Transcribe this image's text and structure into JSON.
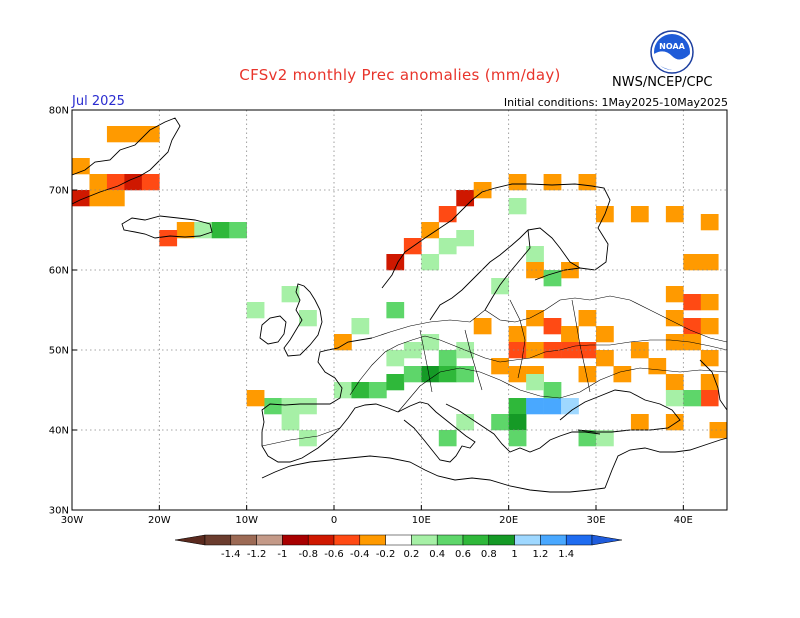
{
  "header": {
    "title": "CFSv2 monthly Prec anomalies (mm/day)",
    "month": "Jul 2025",
    "initial_conditions": "Initial conditions: 1May2025-10May2025",
    "agency": "NWS/NCEP/CPC",
    "logo_text": "NOAA"
  },
  "map": {
    "lon_range": [
      -30,
      45
    ],
    "lat_range": [
      30,
      80
    ],
    "lat_labels": [
      "30N",
      "40N",
      "50N",
      "60N",
      "70N",
      "80N"
    ],
    "lon_labels": [
      "30W",
      "20W",
      "10W",
      "0",
      "10E",
      "20E",
      "30E",
      "40E"
    ]
  },
  "colorbar": {
    "labels": [
      "-1.4",
      "-1.2",
      "-1",
      "-0.8",
      "-0.6",
      "-0.4",
      "-0.2",
      "0.2",
      "0.4",
      "0.6",
      "0.8",
      "1",
      "1.2",
      "1.4"
    ],
    "colors": [
      "#6b3d2e",
      "#9c6a55",
      "#c49a88",
      "#a80000",
      "#cf1800",
      "#ff4a14",
      "#ff9a00",
      "#ffffff",
      "#a6f0a6",
      "#5ed66a",
      "#2fb83a",
      "#159a26",
      "#9fd8ff",
      "#49a8ff",
      "#1f6cf0"
    ],
    "low_color": "#5a2a1e",
    "high_color": "#1f5cdc"
  },
  "anomalies": {
    "legend": "colors",
    "cells": [
      {
        "lon": -25,
        "lat": 77,
        "c": "#ff9a00"
      },
      {
        "lon": -23,
        "lat": 77,
        "c": "#ff9a00"
      },
      {
        "lon": -21,
        "lat": 77,
        "c": "#ff9a00"
      },
      {
        "lon": -27,
        "lat": 71,
        "c": "#ff9a00"
      },
      {
        "lon": -25,
        "lat": 71,
        "c": "#ff4a14"
      },
      {
        "lon": -23,
        "lat": 71,
        "c": "#cf1800"
      },
      {
        "lon": -21,
        "lat": 71,
        "c": "#ff4a14"
      },
      {
        "lon": -29,
        "lat": 69,
        "c": "#cf1800"
      },
      {
        "lon": -27,
        "lat": 69,
        "c": "#ff9a00"
      },
      {
        "lon": -25,
        "lat": 69,
        "c": "#ff9a00"
      },
      {
        "lon": -29,
        "lat": 73,
        "c": "#ff9a00"
      },
      {
        "lon": -17,
        "lat": 65,
        "c": "#ff9a00"
      },
      {
        "lon": -19,
        "lat": 64,
        "c": "#ff4a14"
      },
      {
        "lon": -15,
        "lat": 65,
        "c": "#a6f0a6"
      },
      {
        "lon": -13,
        "lat": 65,
        "c": "#2fb83a"
      },
      {
        "lon": -11,
        "lat": 65,
        "c": "#5ed66a"
      },
      {
        "lon": 7,
        "lat": 61,
        "c": "#cf1800"
      },
      {
        "lon": 9,
        "lat": 63,
        "c": "#ff4a14"
      },
      {
        "lon": 11,
        "lat": 65,
        "c": "#ff9a00"
      },
      {
        "lon": 13,
        "lat": 67,
        "c": "#ff4a14"
      },
      {
        "lon": 15,
        "lat": 69,
        "c": "#cf1800"
      },
      {
        "lon": 17,
        "lat": 70,
        "c": "#ff9a00"
      },
      {
        "lon": 21,
        "lat": 71,
        "c": "#ff9a00"
      },
      {
        "lon": 25,
        "lat": 71,
        "c": "#ff9a00"
      },
      {
        "lon": 29,
        "lat": 71,
        "c": "#ff9a00"
      },
      {
        "lon": 11,
        "lat": 61,
        "c": "#a6f0a6"
      },
      {
        "lon": 13,
        "lat": 63,
        "c": "#a6f0a6"
      },
      {
        "lon": 15,
        "lat": 64,
        "c": "#a6f0a6"
      },
      {
        "lon": 21,
        "lat": 68,
        "c": "#a6f0a6"
      },
      {
        "lon": 23,
        "lat": 62,
        "c": "#a6f0a6"
      },
      {
        "lon": 31,
        "lat": 67,
        "c": "#ff9a00"
      },
      {
        "lon": 35,
        "lat": 67,
        "c": "#ff9a00"
      },
      {
        "lon": 39,
        "lat": 67,
        "c": "#ff9a00"
      },
      {
        "lon": 43,
        "lat": 66,
        "c": "#ff9a00"
      },
      {
        "lon": 41,
        "lat": 61,
        "c": "#ff9a00"
      },
      {
        "lon": 43,
        "lat": 61,
        "c": "#ff9a00"
      },
      {
        "lon": 23,
        "lat": 60,
        "c": "#ff9a00"
      },
      {
        "lon": 27,
        "lat": 60,
        "c": "#ff9a00"
      },
      {
        "lon": 25,
        "lat": 59,
        "c": "#5ed66a"
      },
      {
        "lon": 39,
        "lat": 57,
        "c": "#ff9a00"
      },
      {
        "lon": 41,
        "lat": 56,
        "c": "#ff4a14"
      },
      {
        "lon": 43,
        "lat": 56,
        "c": "#ff9a00"
      },
      {
        "lon": 39,
        "lat": 54,
        "c": "#ff9a00"
      },
      {
        "lon": 41,
        "lat": 53,
        "c": "#ff4a14"
      },
      {
        "lon": 43,
        "lat": 53,
        "c": "#ff9a00"
      },
      {
        "lon": 39,
        "lat": 51,
        "c": "#ff9a00"
      },
      {
        "lon": 41,
        "lat": 51,
        "c": "#ff9a00"
      },
      {
        "lon": 43,
        "lat": 49,
        "c": "#ff9a00"
      },
      {
        "lon": 37,
        "lat": 48,
        "c": "#ff9a00"
      },
      {
        "lon": 35,
        "lat": 50,
        "c": "#ff9a00"
      },
      {
        "lon": 23,
        "lat": 54,
        "c": "#ff9a00"
      },
      {
        "lon": 25,
        "lat": 53,
        "c": "#ff4a14"
      },
      {
        "lon": 27,
        "lat": 52,
        "c": "#ff9a00"
      },
      {
        "lon": 29,
        "lat": 54,
        "c": "#ff9a00"
      },
      {
        "lon": 31,
        "lat": 52,
        "c": "#ff9a00"
      },
      {
        "lon": 21,
        "lat": 52,
        "c": "#ff9a00"
      },
      {
        "lon": 21,
        "lat": 50,
        "c": "#ff4a14"
      },
      {
        "lon": 23,
        "lat": 50,
        "c": "#ff9a00"
      },
      {
        "lon": 25,
        "lat": 50,
        "c": "#ff4a14"
      },
      {
        "lon": 27,
        "lat": 50,
        "c": "#ff4a14"
      },
      {
        "lon": 29,
        "lat": 50,
        "c": "#ff4a14"
      },
      {
        "lon": 31,
        "lat": 49,
        "c": "#ff9a00"
      },
      {
        "lon": 19,
        "lat": 48,
        "c": "#ff9a00"
      },
      {
        "lon": 21,
        "lat": 47,
        "c": "#ff9a00"
      },
      {
        "lon": 23,
        "lat": 47,
        "c": "#ff9a00"
      },
      {
        "lon": 29,
        "lat": 47,
        "c": "#ff9a00"
      },
      {
        "lon": 33,
        "lat": 47,
        "c": "#ff9a00"
      },
      {
        "lon": 39,
        "lat": 46,
        "c": "#ff9a00"
      },
      {
        "lon": 43,
        "lat": 46,
        "c": "#ff9a00"
      },
      {
        "lon": 43,
        "lat": 44,
        "c": "#ff4a14"
      },
      {
        "lon": 44,
        "lat": 40,
        "c": "#ff9a00"
      },
      {
        "lon": 35,
        "lat": 41,
        "c": "#ff9a00"
      },
      {
        "lon": 39,
        "lat": 41,
        "c": "#ff9a00"
      },
      {
        "lon": 9,
        "lat": 50,
        "c": "#a6f0a6"
      },
      {
        "lon": 11,
        "lat": 51,
        "c": "#a6f0a6"
      },
      {
        "lon": 13,
        "lat": 49,
        "c": "#5ed66a"
      },
      {
        "lon": 15,
        "lat": 50,
        "c": "#a6f0a6"
      },
      {
        "lon": 7,
        "lat": 49,
        "c": "#a6f0a6"
      },
      {
        "lon": 1,
        "lat": 45,
        "c": "#a6f0a6"
      },
      {
        "lon": 3,
        "lat": 45,
        "c": "#2fb83a"
      },
      {
        "lon": 5,
        "lat": 45,
        "c": "#5ed66a"
      },
      {
        "lon": 7,
        "lat": 46,
        "c": "#2fb83a"
      },
      {
        "lon": 9,
        "lat": 47,
        "c": "#5ed66a"
      },
      {
        "lon": 11,
        "lat": 47,
        "c": "#159a26"
      },
      {
        "lon": 13,
        "lat": 47,
        "c": "#2fb83a"
      },
      {
        "lon": 15,
        "lat": 47,
        "c": "#5ed66a"
      },
      {
        "lon": -7,
        "lat": 43,
        "c": "#5ed66a"
      },
      {
        "lon": -5,
        "lat": 43,
        "c": "#a6f0a6"
      },
      {
        "lon": -3,
        "lat": 43,
        "c": "#a6f0a6"
      },
      {
        "lon": -5,
        "lat": 41,
        "c": "#a6f0a6"
      },
      {
        "lon": -9,
        "lat": 44,
        "c": "#ff9a00"
      },
      {
        "lon": -3,
        "lat": 39,
        "c": "#a6f0a6"
      },
      {
        "lon": 21,
        "lat": 43,
        "c": "#2fb83a"
      },
      {
        "lon": 19,
        "lat": 41,
        "c": "#5ed66a"
      },
      {
        "lon": 21,
        "lat": 41,
        "c": "#159a26"
      },
      {
        "lon": 23,
        "lat": 43,
        "c": "#49a8ff"
      },
      {
        "lon": 25,
        "lat": 43,
        "c": "#49a8ff"
      },
      {
        "lon": 27,
        "lat": 43,
        "c": "#9fd8ff"
      },
      {
        "lon": 21,
        "lat": 39,
        "c": "#5ed66a"
      },
      {
        "lon": 25,
        "lat": 45,
        "c": "#5ed66a"
      },
      {
        "lon": 23,
        "lat": 46,
        "c": "#a6f0a6"
      },
      {
        "lon": 29,
        "lat": 39,
        "c": "#5ed66a"
      },
      {
        "lon": 31,
        "lat": 39,
        "c": "#a6f0a6"
      },
      {
        "lon": 15,
        "lat": 41,
        "c": "#a6f0a6"
      },
      {
        "lon": 13,
        "lat": 39,
        "c": "#5ed66a"
      },
      {
        "lon": 39,
        "lat": 44,
        "c": "#a6f0a6"
      },
      {
        "lon": 41,
        "lat": 44,
        "c": "#5ed66a"
      },
      {
        "lon": -9,
        "lat": 55,
        "c": "#a6f0a6"
      },
      {
        "lon": -5,
        "lat": 57,
        "c": "#a6f0a6"
      },
      {
        "lon": -3,
        "lat": 54,
        "c": "#a6f0a6"
      },
      {
        "lon": 1,
        "lat": 51,
        "c": "#ff9a00"
      },
      {
        "lon": 17,
        "lat": 53,
        "c": "#ff9a00"
      },
      {
        "lon": 3,
        "lat": 53,
        "c": "#a6f0a6"
      },
      {
        "lon": 19,
        "lat": 58,
        "c": "#a6f0a6"
      },
      {
        "lon": 7,
        "lat": 55,
        "c": "#5ed66a"
      }
    ]
  }
}
